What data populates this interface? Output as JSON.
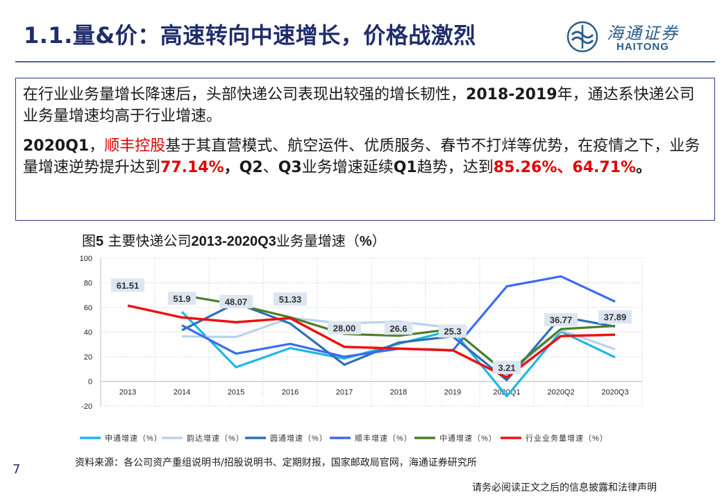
{
  "slide": {
    "title": "1.1.量&价：高速转向中速增长，价格战激烈",
    "page_number": "7",
    "disclaimer": "请务必阅读正文之后的信息披露和法律声明"
  },
  "logo": {
    "cn": "海通证券",
    "en": "HAITONG"
  },
  "text_box": {
    "p1": {
      "a": "在行业业务量增长降速后，头部快递公司表现出较强的增长韧性，",
      "b": "2018-2019",
      "c": "年，通达系快递公司业务量增速均高于行业增速。"
    },
    "p2": {
      "a": "2020Q1",
      "b": "，",
      "c": "顺丰控股",
      "d": "基于其直营模式、航空运件、优质服务、春节不打烊等优势，在疫情之下，业务量增速逆势提升达到",
      "e": "77.14%",
      "f": "，",
      "g": "Q2",
      "h": "、",
      "i": "Q3",
      "j": "业务增速延续",
      "k": "Q1",
      "l": "趋势，达到",
      "m": "85.26%",
      "n": "、",
      "o": "64.71%",
      "p": "。"
    }
  },
  "figure": {
    "title_a": "图",
    "title_b": "5",
    "title_c": " 主要快递公司",
    "title_d": "2013-2020Q3",
    "title_e": "业务量增速（",
    "title_f": "%",
    "title_g": "）"
  },
  "chart_data": {
    "type": "line",
    "categories": [
      "2013",
      "2014",
      "2015",
      "2016",
      "2017",
      "2018",
      "2019",
      "2020Q1",
      "2020Q2",
      "2020Q3"
    ],
    "ylim": [
      -20,
      100
    ],
    "yticks": [
      "100",
      "80",
      "60",
      "40",
      "20",
      "0",
      "-20"
    ],
    "grid": true,
    "legend_position": "bottom",
    "series": [
      {
        "name": "申通增速（%）",
        "color": "#1fb6e6",
        "values": [
          null,
          56.5,
          11.5,
          27.0,
          18.5,
          30.5,
          41.5,
          -12.0,
          40.5,
          19.5
        ]
      },
      {
        "name": "韵达增速（%）",
        "color": "#b8d3ea",
        "values": [
          null,
          36.5,
          36.0,
          51.5,
          47.0,
          48.5,
          43.5,
          5.0,
          41.5,
          26.0
        ]
      },
      {
        "name": "圆通增速（%）",
        "color": "#2f6fb5",
        "values": [
          null,
          41.5,
          63.5,
          47.0,
          13.5,
          31.5,
          36.5,
          1.0,
          52.5,
          44.5
        ]
      },
      {
        "name": "顺丰增速（%）",
        "color": "#3a6cf0",
        "values": [
          null,
          45.5,
          22.5,
          30.5,
          20.0,
          26.5,
          25.0,
          77.14,
          85.26,
          64.71
        ]
      },
      {
        "name": "中通增速（%）",
        "color": "#4b7f2a",
        "values": [
          null,
          70.0,
          62.5,
          52.0,
          38.5,
          37.0,
          42.5,
          6.5,
          42.5,
          45.0
        ]
      },
      {
        "name": "行业业务量增速（%）",
        "color": "#ee1010",
        "values": [
          61.51,
          51.9,
          48.07,
          51.33,
          28.0,
          26.6,
          25.3,
          3.21,
          36.77,
          37.89
        ]
      }
    ],
    "data_labels": [
      {
        "text": "61.51",
        "index": 0,
        "value": 61.51
      },
      {
        "text": "51.9",
        "index": 1,
        "value": 51.9
      },
      {
        "text": "48.07",
        "index": 2,
        "value": 48.07
      },
      {
        "text": "51.33",
        "index": 3,
        "value": 51.33
      },
      {
        "text": "28.00",
        "index": 4,
        "value": 28.0
      },
      {
        "text": "26.6",
        "index": 5,
        "value": 26.6
      },
      {
        "text": "25.3",
        "index": 6,
        "value": 25.3
      },
      {
        "text": "3.21",
        "index": 7,
        "value": 3.21
      },
      {
        "text": "36.77",
        "index": 8,
        "value": 36.77
      },
      {
        "text": "37.89",
        "index": 9,
        "value": 37.89
      }
    ]
  },
  "source": "资料来源：各公司资产重组说明书/招股说明书、定期财报，国家邮政局官网，海通证券研究所"
}
